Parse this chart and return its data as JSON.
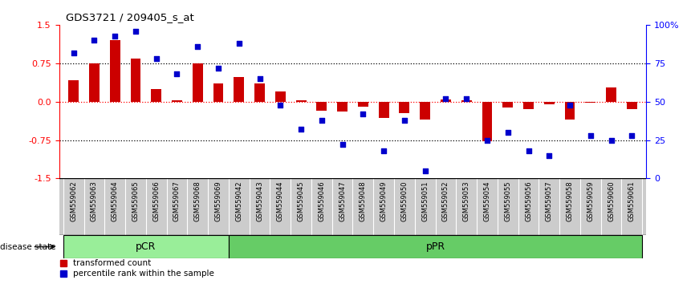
{
  "title": "GDS3721 / 209405_s_at",
  "samples": [
    "GSM559062",
    "GSM559063",
    "GSM559064",
    "GSM559065",
    "GSM559066",
    "GSM559067",
    "GSM559068",
    "GSM559069",
    "GSM559042",
    "GSM559043",
    "GSM559044",
    "GSM559045",
    "GSM559046",
    "GSM559047",
    "GSM559048",
    "GSM559049",
    "GSM559050",
    "GSM559051",
    "GSM559052",
    "GSM559053",
    "GSM559054",
    "GSM559055",
    "GSM559056",
    "GSM559057",
    "GSM559058",
    "GSM559059",
    "GSM559060",
    "GSM559061"
  ],
  "transformed_count": [
    0.42,
    0.75,
    1.2,
    0.85,
    0.25,
    0.02,
    0.75,
    0.35,
    0.48,
    0.35,
    0.2,
    0.02,
    -0.18,
    -0.2,
    -0.1,
    -0.32,
    -0.22,
    -0.35,
    0.05,
    0.02,
    -0.78,
    -0.12,
    -0.15,
    -0.05,
    -0.35,
    -0.02,
    0.28,
    -0.15
  ],
  "percentile_rank": [
    82,
    90,
    93,
    96,
    78,
    68,
    86,
    72,
    88,
    65,
    48,
    32,
    38,
    22,
    42,
    18,
    38,
    5,
    52,
    52,
    25,
    30,
    18,
    15,
    48,
    28,
    25,
    28
  ],
  "pCR_count": 8,
  "bar_color": "#CC0000",
  "dot_color": "#0000CC",
  "pCR_color": "#99EE99",
  "pPR_color": "#66CC66",
  "xlabel_bg": "#cccccc",
  "ylim_left": [
    -1.5,
    1.5
  ],
  "ylim_right": [
    0,
    100
  ],
  "yticks_left": [
    -1.5,
    -0.75,
    0.0,
    0.75,
    1.5
  ],
  "yticks_right": [
    0,
    25,
    50,
    75,
    100
  ],
  "ytick_labels_right": [
    "0",
    "25",
    "50",
    "75",
    "100%"
  ],
  "hlines_black": [
    0.75,
    -0.75
  ],
  "hline_red": 0.0
}
